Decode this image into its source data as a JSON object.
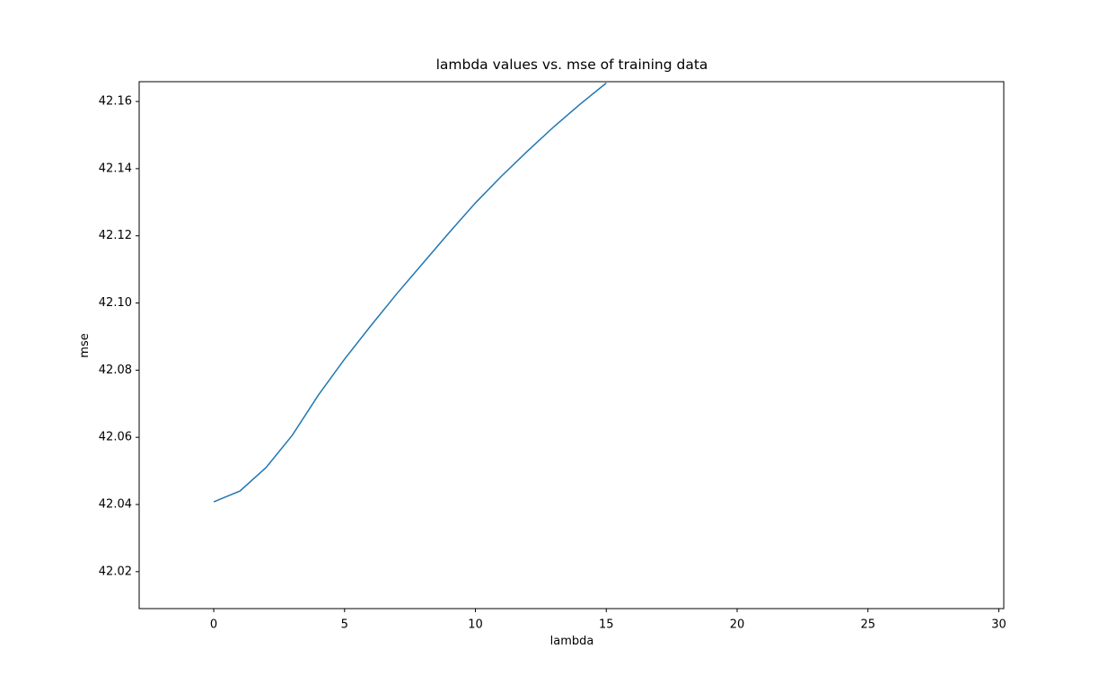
{
  "chart_data": {
    "type": "line",
    "title": "lambda values vs. mse of training data",
    "x_label": "lambda",
    "y_label": "mse",
    "x": [
      0,
      1,
      2,
      3,
      4,
      5,
      6,
      7,
      8,
      9,
      10,
      11,
      12,
      13,
      14,
      15
    ],
    "series": [
      {
        "color": "#1f77b4",
        "values": [
          42.0408,
          42.044,
          42.051,
          42.0606,
          42.0726,
          42.0833,
          42.0932,
          42.1028,
          42.1119,
          42.121,
          42.1298,
          42.1378,
          42.1453,
          42.1525,
          42.1592,
          42.1655
        ]
      }
    ],
    "xlim": [
      -2.85,
      30.19
    ],
    "xticks": [
      0,
      5,
      10,
      15,
      20,
      25,
      30
    ],
    "ylim": [
      42.009,
      42.1659
    ],
    "yticks": [
      42.02,
      42.04,
      42.06,
      42.08,
      {
        "value": 42.1,
        "label": "42.10"
      },
      42.12,
      42.14,
      42.16
    ],
    "grid": false
  }
}
